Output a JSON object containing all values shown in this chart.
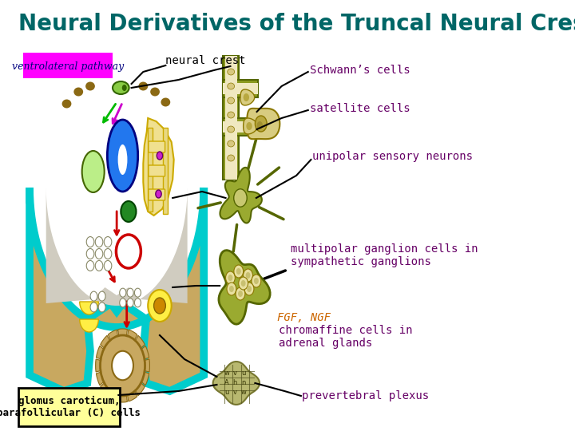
{
  "title": "Neural Derivatives of the Truncal Neural Crest",
  "title_color": "#006666",
  "title_fontsize": 20,
  "bg_color": "#ffffff",
  "ventrolateral_label": "ventrolateral pathway",
  "ventrolateral_box_color": "#ff00ff",
  "ventrolateral_text_color": "#000080",
  "neural_crest_label": "neural crest",
  "labels": {
    "schwanns": "Schwann’s cells",
    "satellite": "satellite cells",
    "unipolar": "unipolar sensory neurons",
    "multipolar": "multipolar ganglion cells in\nsympathetic ganglions",
    "fgf_ngf": "FGF, NGF",
    "chromaffine": "chromaffine cells in\nadrenal glands",
    "prevertebral": "prevertebral plexus",
    "glomus": "glomus caroticum,\nparafollicular (C) cells"
  },
  "label_color": "#660066",
  "fgf_color": "#cc6600",
  "glomus_box_color": "#ffff99",
  "glomus_box_border": "#000000",
  "glomus_text_color": "#000000"
}
